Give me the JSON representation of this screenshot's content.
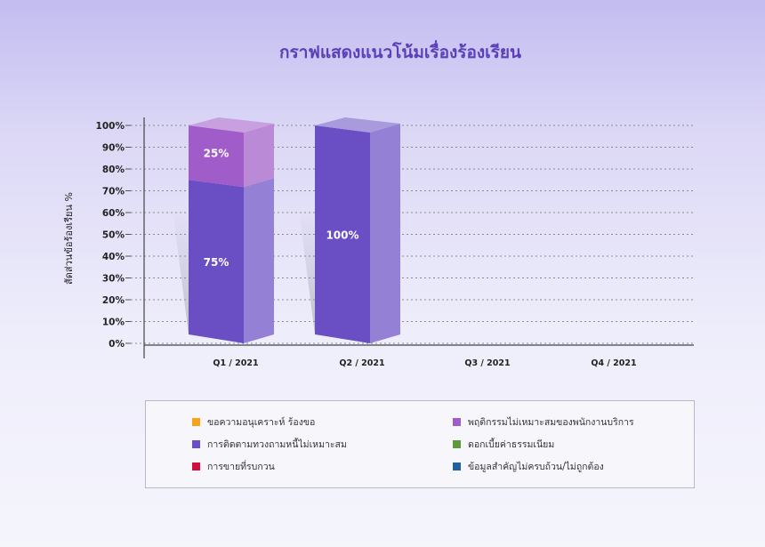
{
  "chart_data": {
    "type": "bar",
    "title": "กราฟแสดงแนวโน้มเรื่องร้องเรียน",
    "ylabel": "สัดส่วนข้อร้องเรียน %",
    "categories": [
      "Q1 / 2021",
      "Q2 / 2021",
      "Q3 / 2021",
      "Q4 / 2021"
    ],
    "ylim": [
      0,
      100
    ],
    "yticks": [
      "0%",
      "10%",
      "20%",
      "30%",
      "40%",
      "50%",
      "60%",
      "70%",
      "80%",
      "90%",
      "100%"
    ],
    "stacked": true,
    "grid": true,
    "legend_position": "bottom",
    "series": [
      {
        "name": "ขอความอนุเคราะห์ ร้องขอ",
        "color": "#f5a31a",
        "values": [
          0,
          0,
          0,
          0
        ],
        "labels": [
          "",
          "",
          "",
          ""
        ]
      },
      {
        "name": "การติดตามทวงถามหนี้ไม่เหมาะสม",
        "color": "#6a4fc4",
        "values": [
          75,
          100,
          0,
          0
        ],
        "labels": [
          "75%",
          "100%",
          "",
          ""
        ]
      },
      {
        "name": "การขายที่รบกวน",
        "color": "#d0103a",
        "values": [
          0,
          0,
          0,
          0
        ],
        "labels": [
          "",
          "",
          "",
          ""
        ]
      },
      {
        "name": "พฤติกรรมไม่เหมาะสมของพนักงานบริการ",
        "color": "#a05cc8",
        "values": [
          25,
          0,
          0,
          0
        ],
        "labels": [
          "25%",
          "",
          "",
          ""
        ]
      },
      {
        "name": "ดอกเบี้ยค่าธรรมเนียม",
        "color": "#5e9a3c",
        "values": [
          0,
          0,
          0,
          0
        ],
        "labels": [
          "",
          "",
          "",
          ""
        ]
      },
      {
        "name": "ข้อมูลสำคัญไม่ครบถ้วน/ไม่ถูกต้อง",
        "color": "#2060a0",
        "values": [
          0,
          0,
          0,
          0
        ],
        "labels": [
          "",
          "",
          "",
          ""
        ]
      }
    ]
  }
}
